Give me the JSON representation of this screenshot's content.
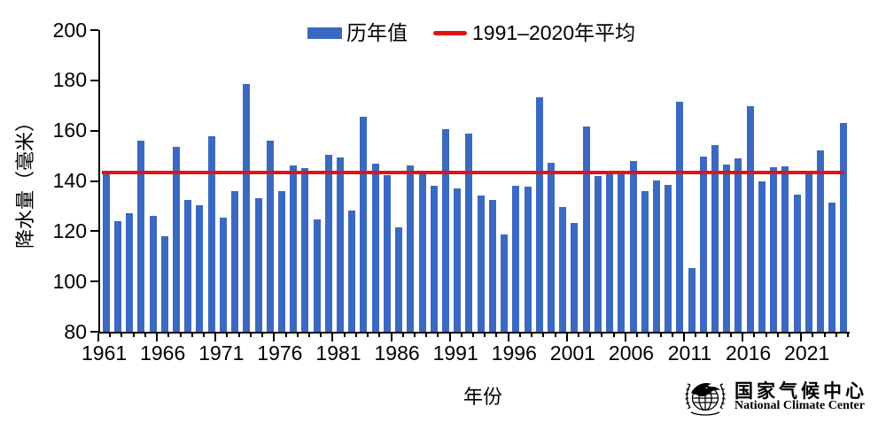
{
  "chart_data": {
    "type": "bar",
    "title": "",
    "xlabel": "年份",
    "ylabel": "降水量（毫米）",
    "ylim": [
      80,
      200
    ],
    "yticks": [
      80,
      100,
      120,
      140,
      160,
      180,
      200
    ],
    "xtick_labels": [
      "1961",
      "1966",
      "1971",
      "1976",
      "1981",
      "1986",
      "1991",
      "1996",
      "2001",
      "2006",
      "2011",
      "2016",
      "2021"
    ],
    "xtick_label_interval": 5,
    "grid": false,
    "legend_position": "top-center",
    "categories": [
      1961,
      1962,
      1963,
      1964,
      1965,
      1966,
      1967,
      1968,
      1969,
      1970,
      1971,
      1972,
      1973,
      1974,
      1975,
      1976,
      1977,
      1978,
      1979,
      1980,
      1981,
      1982,
      1983,
      1984,
      1985,
      1986,
      1987,
      1988,
      1989,
      1990,
      1991,
      1992,
      1993,
      1994,
      1995,
      1996,
      1997,
      1998,
      1999,
      2000,
      2001,
      2002,
      2003,
      2004,
      2005,
      2006,
      2007,
      2008,
      2009,
      2010,
      2011,
      2012,
      2013,
      2014,
      2015,
      2016,
      2017,
      2018,
      2019,
      2020,
      2021,
      2022,
      2023,
      2024
    ],
    "series": [
      {
        "name": "历年值",
        "type": "bar",
        "color": "#3b69c2",
        "values": [
          143.0,
          124.0,
          127.0,
          156.2,
          126.2,
          118.0,
          153.5,
          132.4,
          130.3,
          157.7,
          125.4,
          135.8,
          178.5,
          133.3,
          156.0,
          136.0,
          146.0,
          145.0,
          124.8,
          150.4,
          149.5,
          128.3,
          165.6,
          147.0,
          142.4,
          121.5,
          146.0,
          142.7,
          138.2,
          160.5,
          137.0,
          158.8,
          134.1,
          132.3,
          118.8,
          138.0,
          137.7,
          173.2,
          147.1,
          129.7,
          123.3,
          161.8,
          141.8,
          144.2,
          142.5,
          147.8,
          135.8,
          140.3,
          138.3,
          171.6,
          105.3,
          149.7,
          154.1,
          146.6,
          148.9,
          169.7,
          140.0,
          145.4,
          145.8,
          134.7,
          143.8,
          152.3,
          131.3,
          162.9
        ]
      },
      {
        "name": "1991–2020年平均",
        "type": "reference-line",
        "color": "#df1414",
        "value": 143.4
      }
    ]
  },
  "legend": {
    "bar_label": "历年值",
    "line_label": "1991–2020年平均"
  },
  "branding": {
    "logo_icon": "globe-laurel-bird-emblem",
    "name_cn": "国家气候中心",
    "name_en": "National Climate Center"
  },
  "colors": {
    "bar": "#3b69c2",
    "reference_line": "#df1414",
    "axis": "#000000",
    "text": "#000000",
    "background": "#ffffff"
  }
}
